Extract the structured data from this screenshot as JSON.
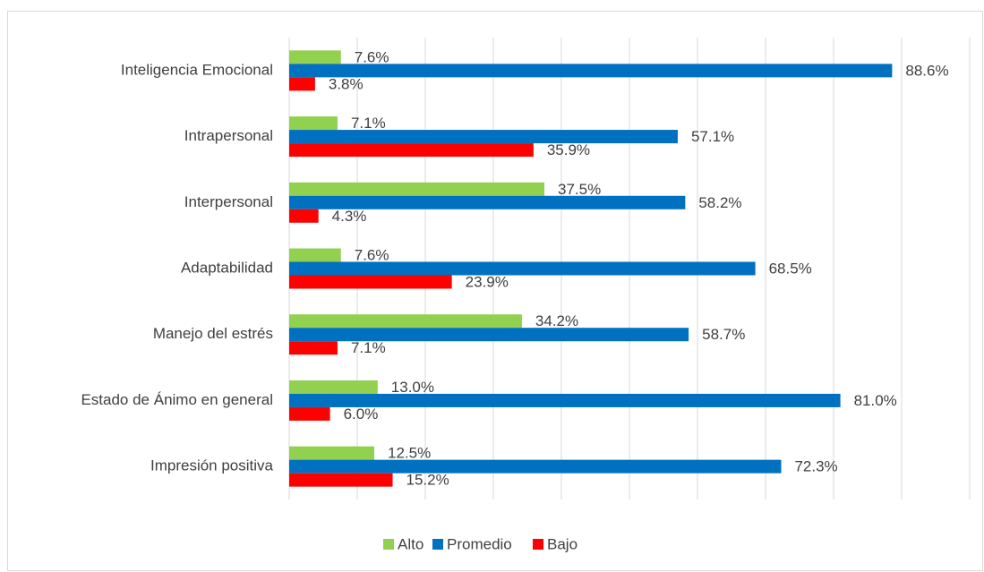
{
  "chart_data": {
    "type": "bar",
    "orientation": "horizontal",
    "categories": [
      "Inteligencia Emocional",
      "Intrapersonal",
      "Interpersonal",
      "Adaptabilidad",
      "Manejo del estrés",
      "Estado de Ánimo en general",
      "Impresión positiva"
    ],
    "series": [
      {
        "name": "Alto",
        "color": "#92d050",
        "values": [
          7.6,
          7.1,
          37.5,
          7.6,
          34.2,
          13.0,
          12.5
        ],
        "value_labels": [
          "7.6%",
          "7.1%",
          "37.5%",
          "7.6%",
          "34.2%",
          "13.0%",
          "12.5%"
        ]
      },
      {
        "name": "Promedio",
        "color": "#0070c0",
        "values": [
          88.6,
          57.1,
          58.2,
          68.5,
          58.7,
          81.0,
          72.3
        ],
        "value_labels": [
          "88.6%",
          "57.1%",
          "58.2%",
          "68.5%",
          "58.7%",
          "81.0%",
          "72.3%"
        ]
      },
      {
        "name": "Bajo",
        "color": "#ff0000",
        "values": [
          3.8,
          35.9,
          4.3,
          23.9,
          7.1,
          6.0,
          15.2
        ],
        "value_labels": [
          "3.8%",
          "35.9%",
          "4.3%",
          "23.9%",
          "7.1%",
          "6.0%",
          "15.2%"
        ]
      }
    ],
    "xlim": [
      0,
      100
    ],
    "xticks": [
      0,
      10,
      20,
      30,
      40,
      50,
      60,
      70,
      80,
      90,
      100
    ],
    "grid": true,
    "legend": "bottom"
  }
}
